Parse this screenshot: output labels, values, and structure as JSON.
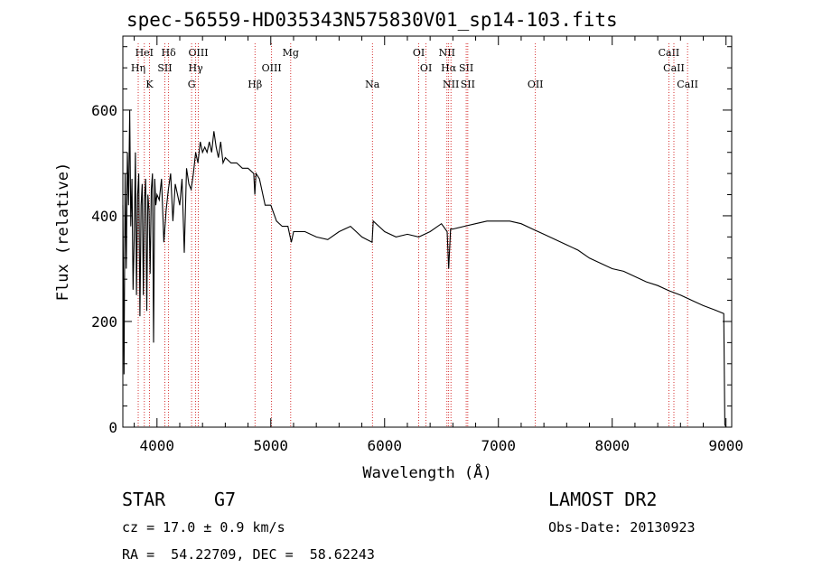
{
  "chart_data": {
    "type": "line",
    "title": "spec-56559-HD035343N575830V01_sp14-103.fits",
    "xlabel": "Wavelength (Å)",
    "ylabel": "Flux (relative)",
    "xlim": [
      3700,
      9050
    ],
    "ylim": [
      0,
      740
    ],
    "xticks": [
      4000,
      5000,
      6000,
      7000,
      8000,
      9000
    ],
    "yticks": [
      0,
      200,
      400,
      600
    ],
    "grid": false,
    "series": [
      {
        "x": [
          3700,
          3710,
          3720,
          3730,
          3740,
          3750,
          3760,
          3770,
          3780,
          3790,
          3800,
          3810,
          3820,
          3830,
          3840,
          3850,
          3860,
          3870,
          3880,
          3890,
          3900,
          3910,
          3920,
          3930,
          3940,
          3950,
          3960,
          3970,
          3980,
          3990,
          4000,
          4020,
          4040,
          4060,
          4080,
          4100,
          4120,
          4140,
          4160,
          4180,
          4200,
          4220,
          4240,
          4260,
          4280,
          4300,
          4320,
          4340,
          4360,
          4380,
          4400,
          4420,
          4440,
          4460,
          4480,
          4500,
          4520,
          4540,
          4560,
          4580,
          4600,
          4650,
          4700,
          4750,
          4800,
          4850,
          4860,
          4870,
          4900,
          4950,
          5000,
          5050,
          5100,
          5150,
          5180,
          5200,
          5300,
          5400,
          5500,
          5600,
          5700,
          5800,
          5890,
          5900,
          6000,
          6100,
          6200,
          6300,
          6400,
          6500,
          6550,
          6563,
          6580,
          6600,
          6700,
          6800,
          6900,
          7000,
          7100,
          7200,
          7300,
          7400,
          7500,
          7600,
          7700,
          7800,
          7900,
          8000,
          8100,
          8200,
          8300,
          8400,
          8500,
          8600,
          8700,
          8800,
          8900,
          8980,
          8990,
          9000
        ],
        "values": [
          420,
          100,
          480,
          300,
          520,
          420,
          600,
          380,
          470,
          260,
          360,
          520,
          250,
          440,
          480,
          210,
          420,
          460,
          250,
          430,
          470,
          220,
          440,
          410,
          290,
          450,
          480,
          160,
          470,
          420,
          440,
          430,
          470,
          350,
          410,
          450,
          480,
          390,
          460,
          440,
          420,
          470,
          330,
          490,
          460,
          450,
          480,
          520,
          500,
          540,
          520,
          530,
          520,
          540,
          520,
          560,
          530,
          510,
          540,
          500,
          510,
          500,
          500,
          490,
          490,
          480,
          440,
          480,
          470,
          420,
          420,
          390,
          380,
          380,
          350,
          370,
          370,
          360,
          355,
          370,
          380,
          360,
          350,
          390,
          370,
          360,
          365,
          360,
          370,
          385,
          370,
          300,
          375,
          375,
          380,
          385,
          390,
          390,
          390,
          385,
          375,
          365,
          355,
          345,
          335,
          320,
          310,
          300,
          295,
          285,
          275,
          268,
          258,
          250,
          240,
          230,
          222,
          215,
          5,
          0
        ]
      }
    ],
    "spectral_lines": [
      {
        "name": "HeI",
        "wavelength": 3889,
        "row": 0
      },
      {
        "name": "Hδ",
        "wavelength": 4102,
        "row": 0
      },
      {
        "name": "OIII",
        "wavelength": 4363,
        "row": 0
      },
      {
        "name": "Mg",
        "wavelength": 5175,
        "row": 0
      },
      {
        "name": "OI",
        "wavelength": 6300,
        "row": 0
      },
      {
        "name": "NII",
        "wavelength": 6548,
        "row": 0
      },
      {
        "name": "CaII",
        "wavelength": 8498,
        "row": 0
      },
      {
        "name": "Hη",
        "wavelength": 3835,
        "row": 1
      },
      {
        "name": "SII",
        "wavelength": 4069,
        "row": 1
      },
      {
        "name": "Hγ",
        "wavelength": 4340,
        "row": 1
      },
      {
        "name": "OIII",
        "wavelength": 5007,
        "row": 1
      },
      {
        "name": "OI",
        "wavelength": 6364,
        "row": 1
      },
      {
        "name": "Hα",
        "wavelength": 6563,
        "row": 1
      },
      {
        "name": "SII",
        "wavelength": 6717,
        "row": 1
      },
      {
        "name": "CaII",
        "wavelength": 8542,
        "row": 1
      },
      {
        "name": "K",
        "wavelength": 3934,
        "row": 2
      },
      {
        "name": "G",
        "wavelength": 4304,
        "row": 2
      },
      {
        "name": "Hβ",
        "wavelength": 4861,
        "row": 2
      },
      {
        "name": "Na",
        "wavelength": 5893,
        "row": 2
      },
      {
        "name": "NII",
        "wavelength": 6583,
        "row": 2
      },
      {
        "name": "SII",
        "wavelength": 6731,
        "row": 2
      },
      {
        "name": "OII",
        "wavelength": 7325,
        "row": 2
      },
      {
        "name": "CaII",
        "wavelength": 8662,
        "row": 2
      }
    ]
  },
  "info": {
    "class_label": "STAR",
    "subclass": "G7",
    "survey": "LAMOST DR2",
    "cz": "cz = 17.0 ± 0.9 km/s",
    "obs_date": "Obs-Date: 20130923",
    "coords": "RA =  54.22709, DEC =  58.62243"
  },
  "colors": {
    "line_markers": "#cc0000",
    "spectrum": "#000000",
    "axes": "#000000"
  }
}
